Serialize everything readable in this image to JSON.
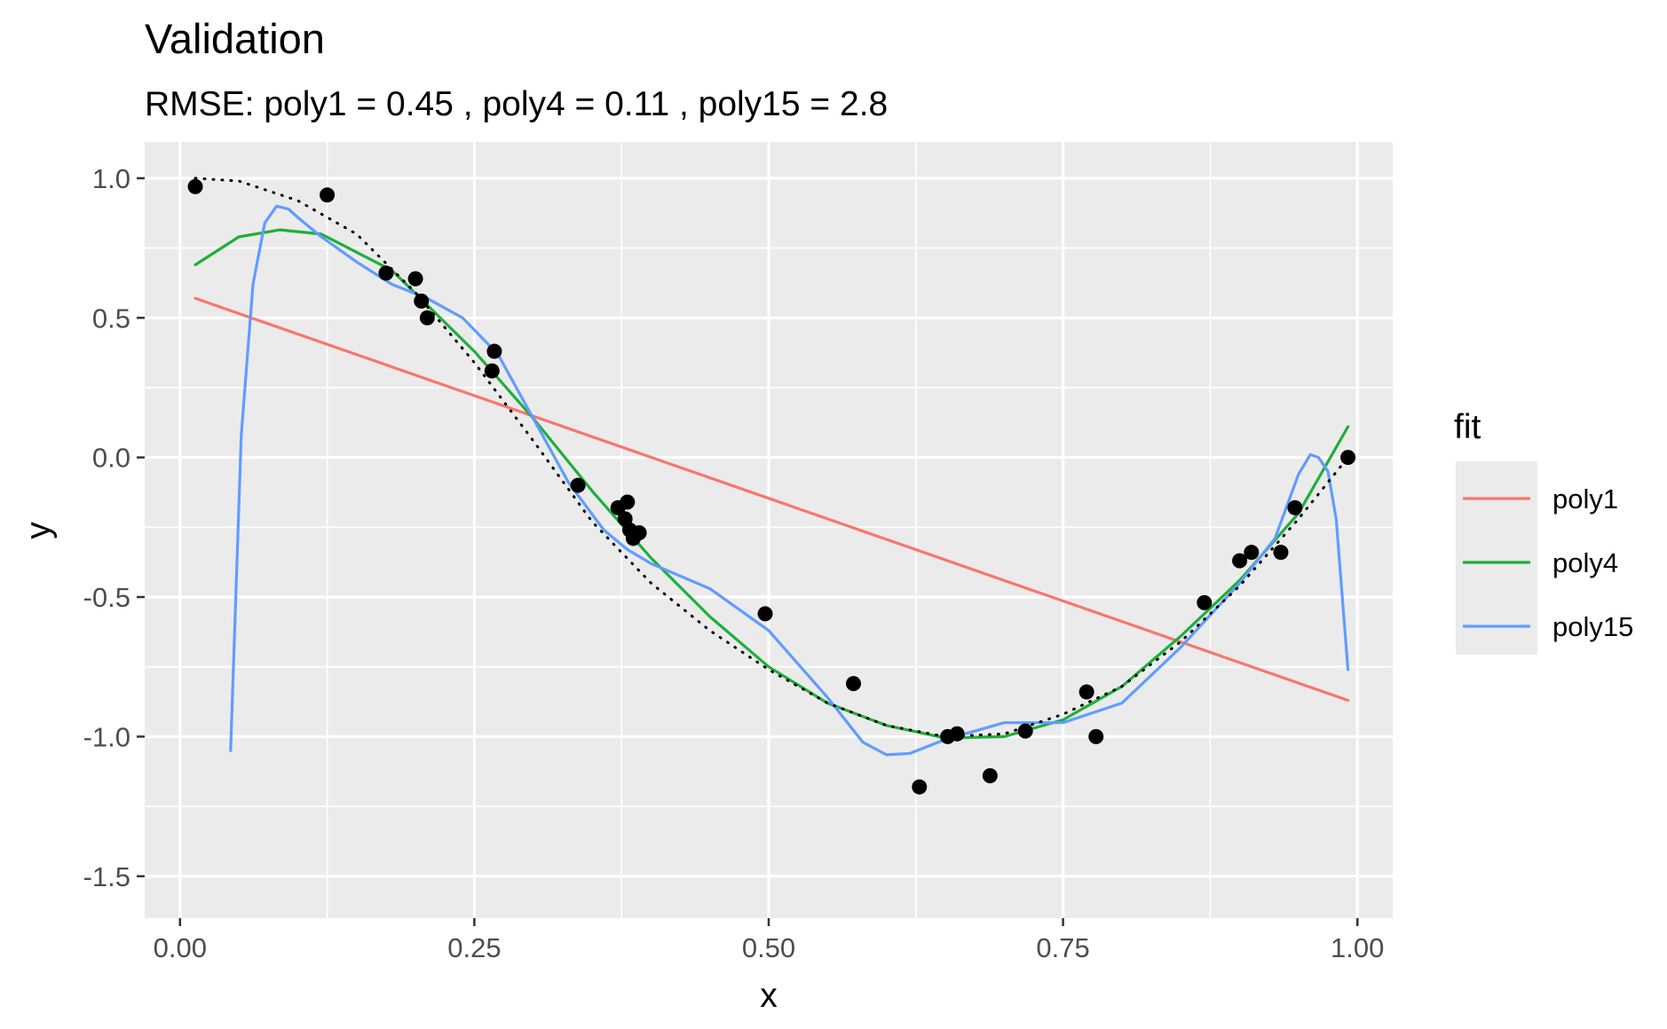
{
  "chart_data": {
    "type": "line",
    "title": "Validation",
    "subtitle": "RMSE: poly1 = 0.45 , poly4 = 0.11 , poly15 = 2.8",
    "xlabel": "x",
    "ylabel": "y",
    "xlim": [
      -0.03,
      1.03
    ],
    "ylim": [
      -1.65,
      1.13
    ],
    "x_ticks": [
      0.0,
      0.25,
      0.5,
      0.75,
      1.0
    ],
    "x_tick_labels": [
      "0.00",
      "0.25",
      "0.50",
      "0.75",
      "1.00"
    ],
    "y_ticks": [
      -1.5,
      -1.0,
      -0.5,
      0.0,
      0.5,
      1.0
    ],
    "y_tick_labels": [
      "-1.5",
      "-1.0",
      "-0.5",
      "0.0",
      "0.5",
      "1.0"
    ],
    "grid": true,
    "legend": {
      "title": "fit",
      "placement": "right",
      "entries": [
        "poly1",
        "poly4",
        "poly15"
      ]
    },
    "series": [
      {
        "name": "poly1",
        "color": "#F8766D",
        "x": [
          0.013,
          0.992
        ],
        "y": [
          0.57,
          -0.87
        ]
      },
      {
        "name": "poly4",
        "color": "#1DB03A",
        "x": [
          0.013,
          0.05,
          0.085,
          0.12,
          0.18,
          0.25,
          0.3,
          0.35,
          0.4,
          0.45,
          0.5,
          0.55,
          0.6,
          0.65,
          0.7,
          0.75,
          0.8,
          0.85,
          0.9,
          0.95,
          0.992
        ],
        "y": [
          0.69,
          0.79,
          0.815,
          0.8,
          0.67,
          0.38,
          0.14,
          -0.12,
          -0.36,
          -0.57,
          -0.75,
          -0.88,
          -0.96,
          -1.005,
          -1.0,
          -0.94,
          -0.82,
          -0.64,
          -0.44,
          -0.2,
          0.11
        ]
      },
      {
        "name": "poly15",
        "color": "#619CFF",
        "x": [
          0.043,
          0.052,
          0.062,
          0.072,
          0.082,
          0.092,
          0.1,
          0.12,
          0.15,
          0.18,
          0.21,
          0.24,
          0.27,
          0.3,
          0.33,
          0.36,
          0.38,
          0.4,
          0.45,
          0.5,
          0.55,
          0.58,
          0.6,
          0.62,
          0.65,
          0.7,
          0.75,
          0.8,
          0.85,
          0.9,
          0.93,
          0.95,
          0.96,
          0.967,
          0.975,
          0.982,
          0.992
        ],
        "y": [
          -1.05,
          0.08,
          0.62,
          0.84,
          0.9,
          0.89,
          0.86,
          0.79,
          0.7,
          0.62,
          0.57,
          0.5,
          0.37,
          0.14,
          -0.09,
          -0.26,
          -0.33,
          -0.38,
          -0.47,
          -0.62,
          -0.86,
          -1.02,
          -1.065,
          -1.06,
          -1.01,
          -0.95,
          -0.95,
          -0.88,
          -0.68,
          -0.45,
          -0.29,
          -0.06,
          0.01,
          0.0,
          -0.05,
          -0.22,
          -0.76
        ]
      },
      {
        "name": "",
        "style": "dotted",
        "color": "#000000",
        "x": [
          0.013,
          0.05,
          0.1,
          0.15,
          0.2,
          0.25,
          0.3,
          0.35,
          0.4,
          0.45,
          0.5,
          0.55,
          0.6,
          0.65,
          0.7,
          0.75,
          0.8,
          0.85,
          0.9,
          0.95,
          0.992
        ],
        "y": [
          1.0,
          0.99,
          0.92,
          0.8,
          0.59,
          0.34,
          0.06,
          -0.23,
          -0.45,
          -0.62,
          -0.76,
          -0.88,
          -0.96,
          -1.0,
          -0.99,
          -0.92,
          -0.82,
          -0.66,
          -0.46,
          -0.22,
          0.0
        ]
      }
    ],
    "points": {
      "color": "#000000",
      "x": [
        0.013,
        0.125,
        0.175,
        0.2,
        0.205,
        0.21,
        0.265,
        0.267,
        0.338,
        0.372,
        0.378,
        0.38,
        0.382,
        0.385,
        0.39,
        0.497,
        0.572,
        0.628,
        0.652,
        0.66,
        0.688,
        0.718,
        0.77,
        0.778,
        0.87,
        0.9,
        0.91,
        0.935,
        0.947,
        0.992
      ],
      "y": [
        0.97,
        0.94,
        0.66,
        0.64,
        0.56,
        0.5,
        0.31,
        0.38,
        -0.1,
        -0.18,
        -0.22,
        -0.16,
        -0.26,
        -0.29,
        -0.27,
        -0.56,
        -0.81,
        -1.18,
        -1.0,
        -0.99,
        -1.14,
        -0.98,
        -0.84,
        -1.0,
        -0.52,
        -0.37,
        -0.34,
        -0.34,
        -0.18,
        0.0
      ]
    }
  }
}
